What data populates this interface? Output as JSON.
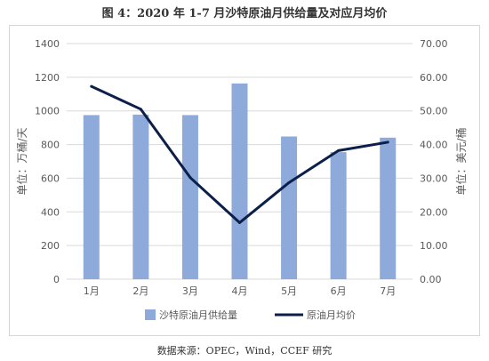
{
  "title": "图 4：2020 年 1-7 月沙特原油月供给量及对应月均价",
  "source": "数据来源：OPEC，Wind，CCEF 研究",
  "colors": {
    "bar": "#8EAADB",
    "line": "#0C1F4A",
    "grid": "#d9d9d9",
    "text": "#595959"
  },
  "chart_data": {
    "type": "bar",
    "categories": [
      "1月",
      "2月",
      "3月",
      "4月",
      "5月",
      "6月",
      "7月"
    ],
    "series": [
      {
        "name": "沙特原油月供给量",
        "type": "bar",
        "axis": "left",
        "values": [
          975,
          978,
          975,
          1163,
          848,
          755,
          841
        ]
      },
      {
        "name": "原油月均价",
        "type": "line",
        "axis": "right",
        "values": [
          57.3,
          50.5,
          30.2,
          16.8,
          28.7,
          38.2,
          40.7
        ]
      }
    ],
    "ylabel": "单位：万桶/天",
    "ylabel_right": "单位：美元/桶",
    "ylim": [
      0,
      1400
    ],
    "ylim_right": [
      0,
      70
    ],
    "yticks": [
      "0",
      "200",
      "400",
      "600",
      "800",
      "1000",
      "1200",
      "1400"
    ],
    "yticks_right": [
      "0.00",
      "10.00",
      "20.00",
      "30.00",
      "40.00",
      "50.00",
      "60.00",
      "70.00"
    ],
    "grid": true,
    "legend_position": "bottom"
  }
}
